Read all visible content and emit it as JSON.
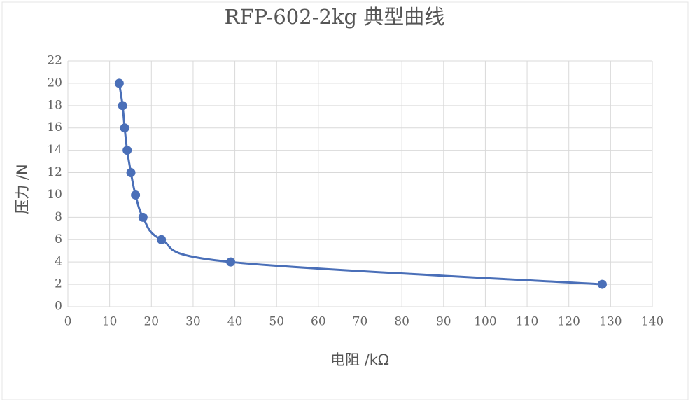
{
  "chart_data": {
    "type": "line",
    "title": "RFP-602-2kg 典型曲线",
    "x_label": "电阻 /kΩ",
    "y_label": "压力 /N",
    "x": [
      12.3,
      13.1,
      13.6,
      14.2,
      15.1,
      16.2,
      18.0,
      22.4,
      39.0,
      128.0
    ],
    "series": [
      {
        "name": "RFP-602-2kg",
        "color": "#4a6fb8",
        "values": [
          20,
          18,
          16,
          14,
          12,
          10,
          8,
          6,
          4,
          2
        ]
      }
    ],
    "xlim": [
      0,
      140
    ],
    "xticks": [
      0,
      10,
      20,
      30,
      40,
      50,
      60,
      70,
      80,
      90,
      100,
      110,
      120,
      130,
      140
    ],
    "ylim": [
      0,
      22
    ],
    "yticks": [
      0,
      2,
      4,
      6,
      8,
      10,
      12,
      14,
      16,
      18,
      20,
      22
    ],
    "grid": true
  }
}
